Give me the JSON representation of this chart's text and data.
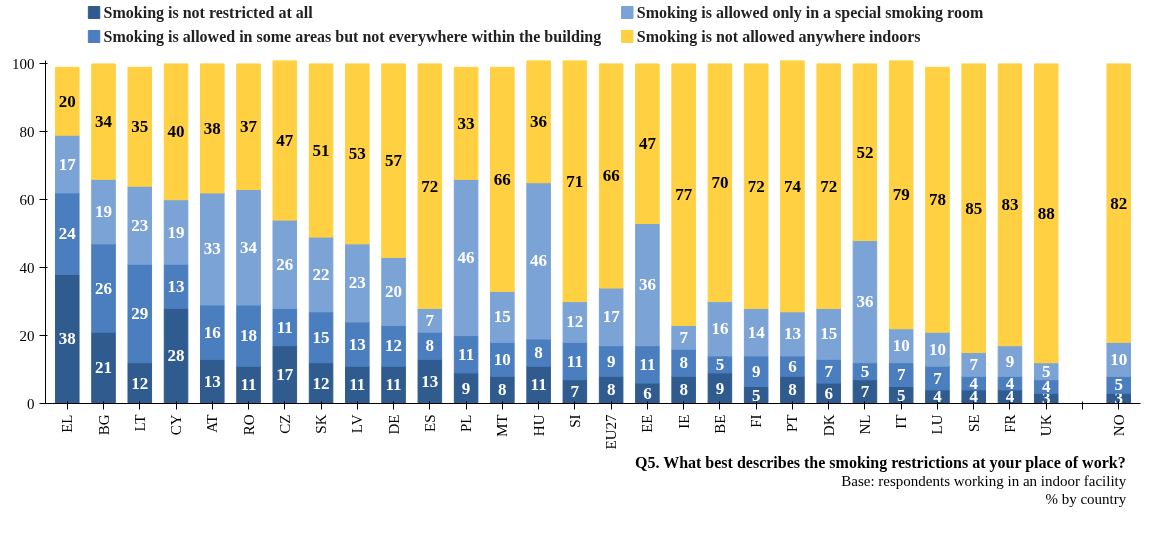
{
  "chart_data": {
    "type": "bar",
    "stacked": true,
    "categories": [
      "EL",
      "BG",
      "LT",
      "CY",
      "AT",
      "RO",
      "CZ",
      "SK",
      "LV",
      "DE",
      "ES",
      "PL",
      "MT",
      "HU",
      "SI",
      "EU27",
      "EE",
      "IE",
      "BE",
      "FI",
      "PT",
      "DK",
      "NL",
      "IT",
      "LU",
      "SE",
      "FR",
      "UK",
      null,
      "NO"
    ],
    "series": [
      {
        "name": "Smoking is not restricted at all",
        "color": "#2f5b8f",
        "values": [
          38,
          21,
          12,
          28,
          13,
          11,
          17,
          12,
          11,
          11,
          13,
          9,
          8,
          11,
          7,
          8,
          6,
          8,
          9,
          5,
          8,
          6,
          7,
          5,
          4,
          4,
          4,
          3,
          null,
          3
        ]
      },
      {
        "name": "Smoking is allowed in some areas but not everywhere within the building",
        "color": "#4a7ebf",
        "values": [
          24,
          26,
          29,
          13,
          16,
          18,
          11,
          15,
          13,
          12,
          8,
          11,
          10,
          8,
          11,
          9,
          11,
          8,
          5,
          9,
          6,
          7,
          5,
          7,
          7,
          4,
          4,
          4,
          null,
          5
        ]
      },
      {
        "name": "Smoking is allowed only in a special smoking room",
        "color": "#7ba3d6",
        "values": [
          17,
          19,
          23,
          19,
          33,
          34,
          26,
          22,
          23,
          20,
          7,
          46,
          15,
          46,
          12,
          17,
          36,
          7,
          16,
          14,
          13,
          15,
          36,
          10,
          10,
          7,
          9,
          5,
          null,
          10
        ]
      },
      {
        "name": "Smoking is not allowed anywhere indoors",
        "color": "#ffd142",
        "values": [
          20,
          34,
          35,
          40,
          38,
          37,
          47,
          51,
          53,
          57,
          72,
          33,
          66,
          36,
          71,
          66,
          47,
          77,
          70,
          72,
          74,
          72,
          52,
          79,
          78,
          85,
          83,
          88,
          null,
          82
        ]
      }
    ],
    "ylim": [
      0,
      101
    ],
    "yticks": [
      0,
      20,
      40,
      60,
      80,
      100
    ],
    "grid": false,
    "legend": "top",
    "data_labels": true,
    "annotations": [
      "Q5. What best describes the smoking restrictions at your place of work?",
      "Base: respondents working in an indoor facility",
      "% by country"
    ]
  }
}
